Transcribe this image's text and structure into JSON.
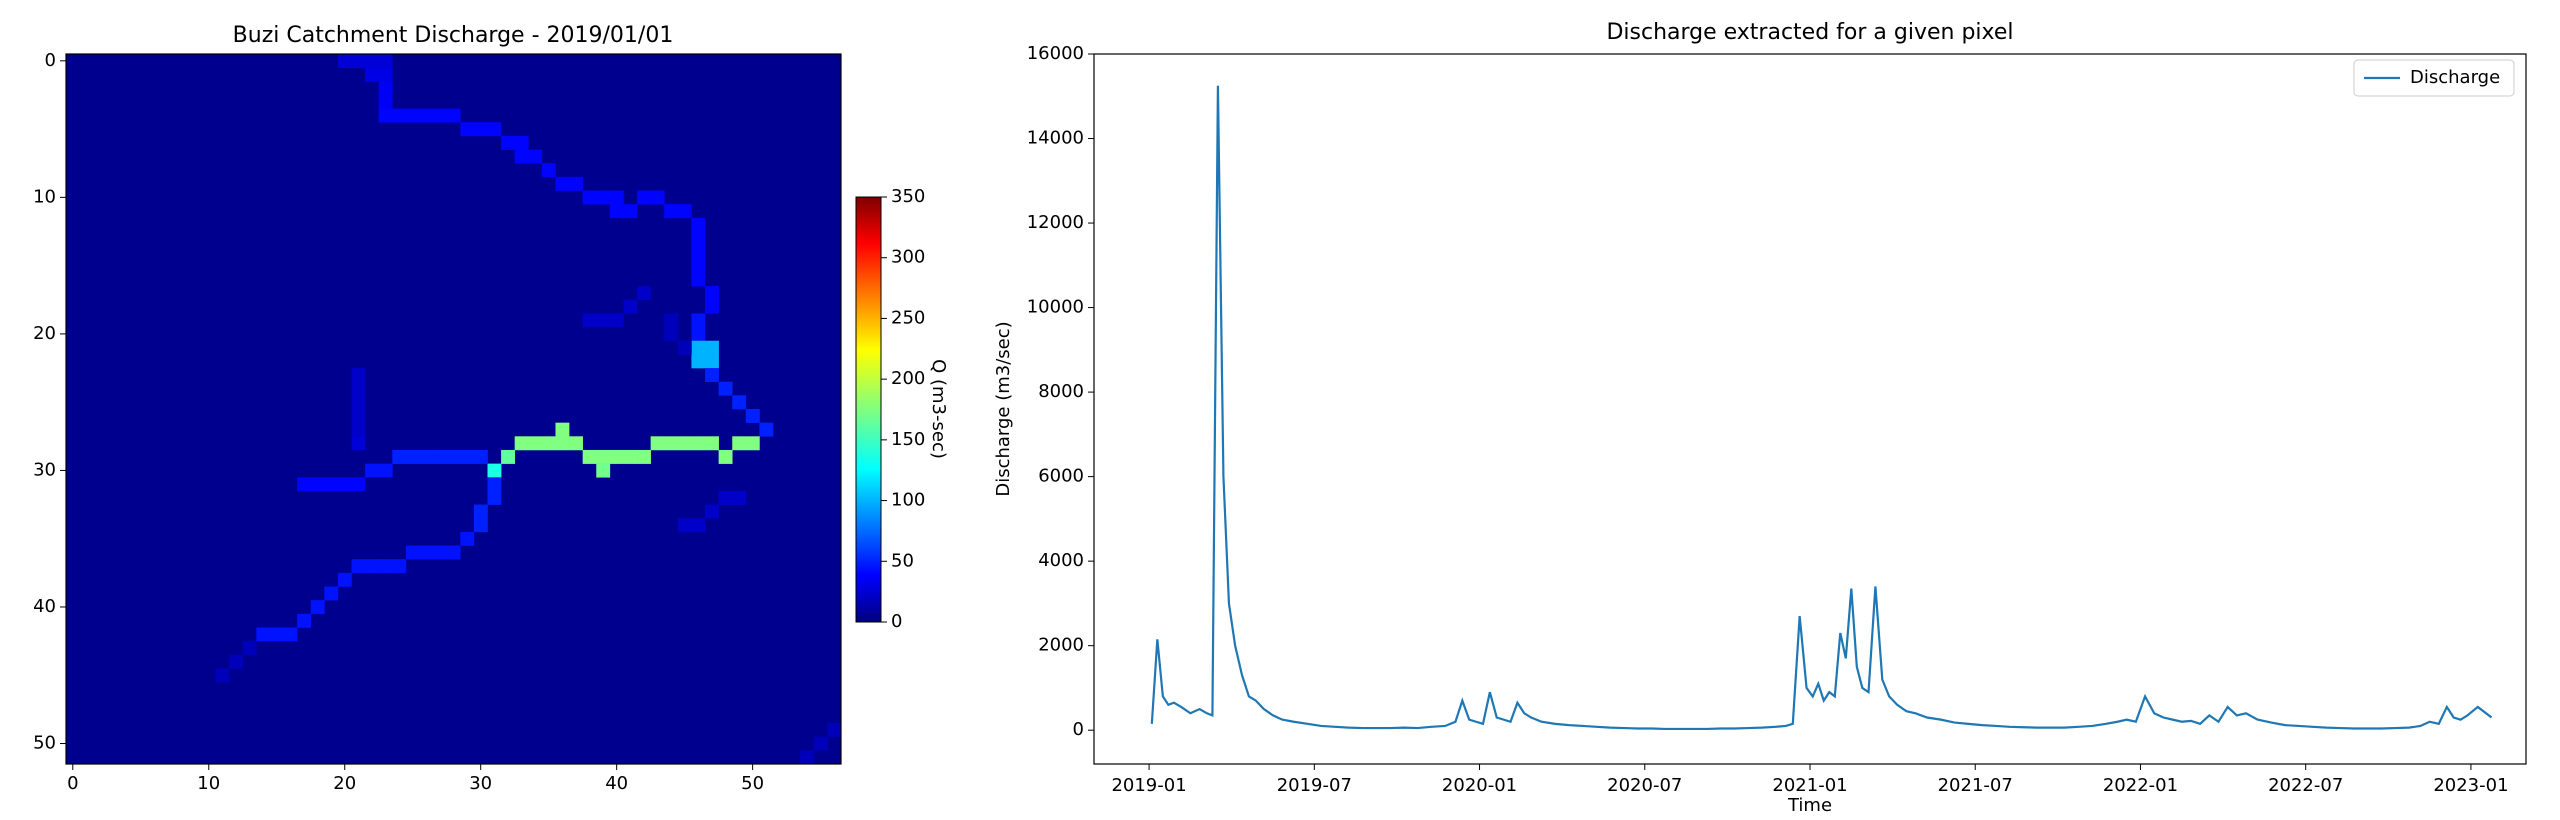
{
  "chart_data": [
    {
      "type": "heatmap",
      "title": "Buzi Catchment Discharge - 2019/01/01",
      "xlim": [
        -0.5,
        56.5
      ],
      "xticks": [
        0,
        10,
        20,
        30,
        40,
        50
      ],
      "ylim": [
        51.5,
        -0.5
      ],
      "yticks": [
        0,
        10,
        20,
        30,
        40,
        50
      ],
      "colormap": "jet",
      "clim": [
        0,
        350
      ],
      "colorbar_ticks": [
        0,
        50,
        100,
        150,
        200,
        250,
        300,
        350
      ],
      "colorbar_label": "Q (m3-sec)",
      "background_value": 5,
      "cells": [
        [
          20,
          0,
          30
        ],
        [
          21,
          0,
          30
        ],
        [
          22,
          0,
          30
        ],
        [
          23,
          0,
          30
        ],
        [
          22,
          1,
          35
        ],
        [
          23,
          1,
          35
        ],
        [
          23,
          2,
          40
        ],
        [
          23,
          3,
          40
        ],
        [
          23,
          4,
          45
        ],
        [
          24,
          4,
          45
        ],
        [
          25,
          4,
          45
        ],
        [
          26,
          4,
          45
        ],
        [
          27,
          4,
          45
        ],
        [
          28,
          4,
          45
        ],
        [
          29,
          5,
          45
        ],
        [
          30,
          5,
          45
        ],
        [
          31,
          5,
          45
        ],
        [
          32,
          6,
          45
        ],
        [
          33,
          6,
          45
        ],
        [
          33,
          7,
          45
        ],
        [
          34,
          7,
          45
        ],
        [
          35,
          8,
          45
        ],
        [
          36,
          9,
          45
        ],
        [
          37,
          9,
          45
        ],
        [
          38,
          10,
          45
        ],
        [
          39,
          10,
          45
        ],
        [
          40,
          10,
          45
        ],
        [
          40,
          11,
          45
        ],
        [
          41,
          11,
          45
        ],
        [
          42,
          10,
          45
        ],
        [
          43,
          10,
          45
        ],
        [
          44,
          11,
          45
        ],
        [
          45,
          11,
          45
        ],
        [
          46,
          12,
          45
        ],
        [
          46,
          13,
          45
        ],
        [
          46,
          14,
          45
        ],
        [
          46,
          15,
          45
        ],
        [
          46,
          16,
          45
        ],
        [
          47,
          17,
          45
        ],
        [
          47,
          18,
          45
        ],
        [
          46,
          19,
          50
        ],
        [
          46,
          20,
          50
        ],
        [
          46,
          21,
          105
        ],
        [
          47,
          21,
          105
        ],
        [
          46,
          22,
          105
        ],
        [
          47,
          22,
          105
        ],
        [
          47,
          23,
          55
        ],
        [
          48,
          24,
          55
        ],
        [
          49,
          25,
          55
        ],
        [
          50,
          26,
          55
        ],
        [
          51,
          27,
          55
        ],
        [
          33,
          28,
          175
        ],
        [
          34,
          28,
          175
        ],
        [
          35,
          28,
          175
        ],
        [
          36,
          27,
          175
        ],
        [
          36,
          28,
          175
        ],
        [
          37,
          28,
          175
        ],
        [
          32,
          29,
          165
        ],
        [
          38,
          29,
          175
        ],
        [
          39,
          29,
          175
        ],
        [
          40,
          29,
          175
        ],
        [
          41,
          29,
          175
        ],
        [
          42,
          29,
          175
        ],
        [
          39,
          30,
          170
        ],
        [
          43,
          28,
          175
        ],
        [
          44,
          28,
          175
        ],
        [
          45,
          28,
          175
        ],
        [
          46,
          28,
          175
        ],
        [
          47,
          28,
          175
        ],
        [
          48,
          29,
          175
        ],
        [
          49,
          28,
          175
        ],
        [
          50,
          28,
          175
        ],
        [
          31,
          30,
          140
        ],
        [
          24,
          29,
          55
        ],
        [
          25,
          29,
          55
        ],
        [
          26,
          29,
          55
        ],
        [
          27,
          29,
          55
        ],
        [
          28,
          29,
          55
        ],
        [
          29,
          29,
          55
        ],
        [
          30,
          29,
          55
        ],
        [
          23,
          30,
          50
        ],
        [
          22,
          30,
          50
        ],
        [
          21,
          31,
          45
        ],
        [
          20,
          31,
          45
        ],
        [
          19,
          31,
          45
        ],
        [
          18,
          31,
          45
        ],
        [
          17,
          31,
          45
        ],
        [
          21,
          28,
          30
        ],
        [
          21,
          27,
          25
        ],
        [
          21,
          26,
          25
        ],
        [
          21,
          25,
          25
        ],
        [
          21,
          24,
          25
        ],
        [
          21,
          23,
          25
        ],
        [
          31,
          31,
          55
        ],
        [
          31,
          32,
          55
        ],
        [
          30,
          33,
          55
        ],
        [
          30,
          34,
          55
        ],
        [
          29,
          35,
          50
        ],
        [
          28,
          36,
          50
        ],
        [
          27,
          36,
          50
        ],
        [
          26,
          36,
          50
        ],
        [
          25,
          36,
          50
        ],
        [
          24,
          37,
          50
        ],
        [
          23,
          37,
          50
        ],
        [
          22,
          37,
          50
        ],
        [
          21,
          37,
          50
        ],
        [
          20,
          38,
          50
        ],
        [
          19,
          39,
          50
        ],
        [
          18,
          40,
          50
        ],
        [
          17,
          41,
          50
        ],
        [
          16,
          42,
          50
        ],
        [
          15,
          42,
          50
        ],
        [
          14,
          42,
          50
        ],
        [
          40,
          19,
          25
        ],
        [
          39,
          19,
          25
        ],
        [
          38,
          19,
          25
        ],
        [
          41,
          18,
          25
        ],
        [
          42,
          17,
          25
        ],
        [
          44,
          19,
          20
        ],
        [
          44,
          20,
          20
        ],
        [
          45,
          21,
          20
        ],
        [
          49,
          32,
          25
        ],
        [
          48,
          32,
          25
        ],
        [
          47,
          33,
          25
        ],
        [
          46,
          34,
          25
        ],
        [
          45,
          34,
          25
        ],
        [
          13,
          43,
          20
        ],
        [
          12,
          44,
          20
        ],
        [
          11,
          45,
          20
        ],
        [
          56,
          49,
          20
        ],
        [
          55,
          50,
          20
        ],
        [
          54,
          51,
          20
        ]
      ]
    },
    {
      "type": "line",
      "title": "Discharge extracted for a given pixel",
      "x_label": "Time",
      "y_label": "Discharge (m3/sec)",
      "xlim": [
        "2018-11",
        "2023-03"
      ],
      "xticks": [
        "2019-01",
        "2019-07",
        "2020-01",
        "2020-07",
        "2021-01",
        "2021-07",
        "2022-01",
        "2022-07",
        "2023-01"
      ],
      "ylim": [
        -800,
        16000
      ],
      "yticks": [
        0,
        2000,
        4000,
        6000,
        8000,
        10000,
        12000,
        14000,
        16000
      ],
      "legend": "upper right",
      "x": [
        "2019-01",
        "2019-01",
        "2019-01",
        "2019-01",
        "2019-01",
        "2019-02",
        "2019-02",
        "2019-02",
        "2019-03",
        "2019-03",
        "2019-03",
        "2019-03",
        "2019-03",
        "2019-04",
        "2019-04",
        "2019-04",
        "2019-04",
        "2019-05",
        "2019-05",
        "2019-05",
        "2019-06",
        "2019-06",
        "2019-07",
        "2019-07",
        "2019-08",
        "2019-08",
        "2019-09",
        "2019-09",
        "2019-10",
        "2019-10",
        "2019-11",
        "2019-11",
        "2019-12",
        "2019-12",
        "2019-12",
        "2019-12",
        "2020-01",
        "2020-01",
        "2020-01",
        "2020-01",
        "2020-02",
        "2020-02",
        "2020-02",
        "2020-02",
        "2020-03",
        "2020-03",
        "2020-04",
        "2020-04",
        "2020-05",
        "2020-05",
        "2020-06",
        "2020-06",
        "2020-07",
        "2020-07",
        "2020-08",
        "2020-08",
        "2020-09",
        "2020-09",
        "2020-10",
        "2020-10",
        "2020-11",
        "2020-11",
        "2020-12",
        "2020-12",
        "2020-12",
        "2020-12",
        "2021-01",
        "2021-01",
        "2021-01",
        "2021-01",
        "2021-01",
        "2021-02",
        "2021-02",
        "2021-02",
        "2021-02",
        "2021-02",
        "2021-03",
        "2021-03",
        "2021-03",
        "2021-03",
        "2021-04",
        "2021-04",
        "2021-04",
        "2021-05",
        "2021-05",
        "2021-06",
        "2021-06",
        "2021-07",
        "2021-07",
        "2021-08",
        "2021-08",
        "2021-09",
        "2021-09",
        "2021-10",
        "2021-10",
        "2021-11",
        "2021-11",
        "2021-12",
        "2021-12",
        "2021-12",
        "2022-01",
        "2022-01",
        "2022-01",
        "2022-02",
        "2022-02",
        "2022-02",
        "2022-03",
        "2022-03",
        "2022-03",
        "2022-04",
        "2022-04",
        "2022-04",
        "2022-05",
        "2022-05",
        "2022-06",
        "2022-06",
        "2022-07",
        "2022-07",
        "2022-08",
        "2022-08",
        "2022-09",
        "2022-09",
        "2022-10",
        "2022-10",
        "2022-11",
        "2022-11",
        "2022-11",
        "2022-12",
        "2022-12",
        "2022-12",
        "2022-12",
        "2023-01",
        "2023-01"
      ],
      "series": [
        {
          "name": "Discharge",
          "color": "#1f77b4",
          "values": [
            150,
            2150,
            800,
            600,
            650,
            550,
            400,
            500,
            400,
            350,
            15250,
            6000,
            3000,
            2000,
            1300,
            800,
            700,
            500,
            350,
            250,
            200,
            150,
            100,
            80,
            60,
            50,
            50,
            50,
            60,
            50,
            80,
            100,
            200,
            700,
            250,
            200,
            150,
            900,
            300,
            250,
            200,
            650,
            400,
            300,
            200,
            150,
            120,
            100,
            80,
            60,
            50,
            40,
            40,
            30,
            30,
            30,
            30,
            40,
            40,
            50,
            60,
            80,
            100,
            150,
            2700,
            1000,
            800,
            1100,
            700,
            900,
            800,
            2300,
            1700,
            3350,
            1500,
            1000,
            900,
            3400,
            1200,
            800,
            600,
            450,
            400,
            300,
            250,
            180,
            150,
            120,
            100,
            80,
            70,
            60,
            60,
            60,
            80,
            100,
            150,
            200,
            250,
            200,
            800,
            400,
            300,
            250,
            200,
            220,
            150,
            350,
            200,
            550,
            350,
            400,
            250,
            180,
            120,
            100,
            80,
            60,
            50,
            40,
            40,
            40,
            50,
            60,
            100,
            200,
            150,
            550,
            300,
            250,
            350,
            550,
            300
          ]
        }
      ]
    }
  ]
}
